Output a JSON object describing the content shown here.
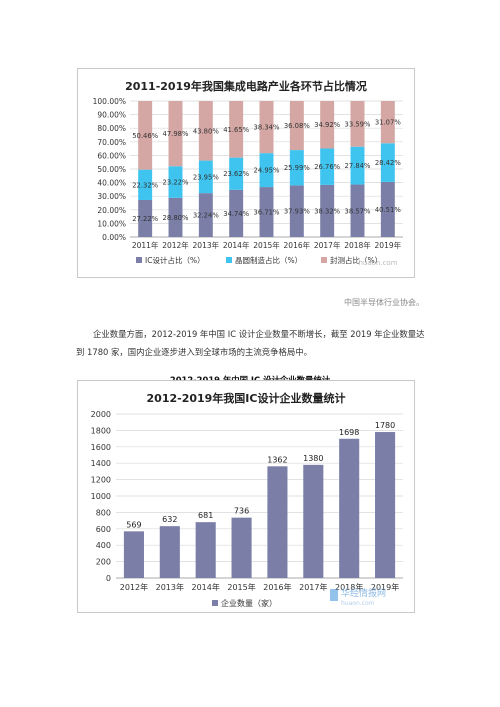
{
  "chart1": {
    "title": "2011-2019年我国集成电路产业各环节占比情况",
    "legend": [
      "IC设计占比（%）",
      "晶圆制造占比（%）",
      "封测占比（%）"
    ],
    "watermark": "huaon.com",
    "colors": [
      "#7b7fa8",
      "#3fc4f0",
      "#d4a7a4"
    ]
  },
  "source_note": "中国半导体行业协会。",
  "paragraph": "企业数量方面，2012-2019 年中国 IC 设计企业数量不断增长，截至 2019 年企业数量达到 1780 家，国内企业逐步进入到全球市场的主流竞争格局中。",
  "section_heading": "2012-2019 年中国 IC 设计企业数量统计",
  "chart2": {
    "title": "2012-2019年我国IC设计企业数量统计",
    "legend": [
      "企业数量（家）"
    ],
    "watermark_brand": "华经情报网",
    "watermark": "huaon.com",
    "colors": [
      "#7b7fa8"
    ]
  },
  "chart_data": [
    {
      "type": "bar",
      "stacked": true,
      "title": "2011-2019年我国集成电路产业各环节占比情况",
      "categories": [
        "2011年",
        "2012年",
        "2013年",
        "2014年",
        "2015年",
        "2016年",
        "2017年",
        "2018年",
        "2019年"
      ],
      "series": [
        {
          "name": "IC设计占比（%）",
          "values": [
            27.22,
            28.8,
            32.24,
            34.74,
            36.71,
            37.93,
            38.32,
            38.57,
            40.51
          ],
          "labels": [
            "27.22%",
            "28.80%",
            "32.24%",
            "34.74%",
            "36.71%",
            "37.93%",
            "38.32%",
            "38.57%",
            "40.51%"
          ]
        },
        {
          "name": "晶圆制造占比（%）",
          "values": [
            22.32,
            23.22,
            23.95,
            23.62,
            24.95,
            25.99,
            26.76,
            27.84,
            28.42
          ],
          "labels": [
            "22.32%",
            "23.22%",
            "23.95%",
            "23.62%",
            "24.95%",
            "25.99%",
            "26.76%",
            "27.84%",
            "28.42%"
          ]
        },
        {
          "name": "封测占比（%）",
          "values": [
            50.46,
            47.98,
            43.8,
            41.65,
            38.34,
            36.08,
            34.92,
            33.59,
            31.07
          ],
          "labels": [
            "50.46%",
            "47.98%",
            "43.80%",
            "41.65%",
            "38.34%",
            "36.08%",
            "34.92%",
            "33.59%",
            "31.07%"
          ]
        }
      ],
      "ylim": [
        0,
        100
      ],
      "yticks": [
        "0.00%",
        "10.00%",
        "20.00%",
        "30.00%",
        "40.00%",
        "50.00%",
        "60.00%",
        "70.00%",
        "80.00%",
        "90.00%",
        "100.00%"
      ],
      "grid": true,
      "legend_position": "bottom"
    },
    {
      "type": "bar",
      "title": "2012-2019年我国IC设计企业数量统计",
      "categories": [
        "2012年",
        "2013年",
        "2014年",
        "2015年",
        "2016年",
        "2017年",
        "2018年",
        "2019年"
      ],
      "series": [
        {
          "name": "企业数量（家）",
          "values": [
            569,
            632,
            681,
            736,
            1362,
            1380,
            1698,
            1780
          ]
        }
      ],
      "ylim": [
        0,
        2000
      ],
      "yticks": [
        "0",
        "200",
        "400",
        "600",
        "800",
        "1000",
        "1200",
        "1400",
        "1600",
        "1800",
        "2000"
      ],
      "grid": true,
      "legend_position": "bottom"
    }
  ]
}
